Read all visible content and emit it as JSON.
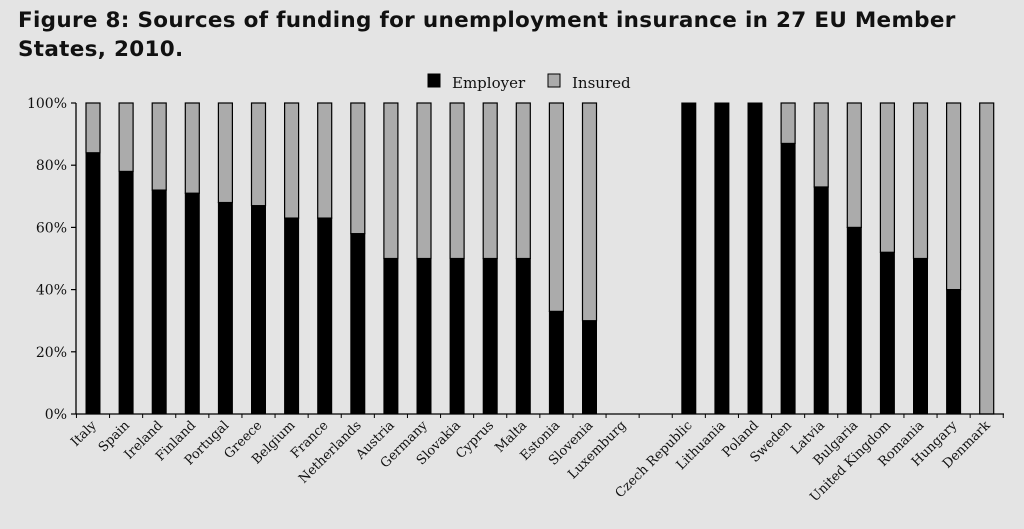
{
  "figure": {
    "title": "Figure 8: Sources of funding for unemployment insurance in 27 EU Member States, 2010."
  },
  "colors": {
    "background": "#e4e4e4",
    "employer": "#000000",
    "insured": "#ababab",
    "axis": "#000000"
  },
  "chart_data": {
    "type": "bar",
    "stacked": true,
    "percent": true,
    "title": "Figure 8: Sources of funding for unemployment insurance in 27 EU Member States, 2010.",
    "xlabel": "",
    "ylabel": "",
    "ylim": [
      0,
      100
    ],
    "yticks": [
      "0%",
      "20%",
      "40%",
      "60%",
      "80%",
      "100%"
    ],
    "grid": false,
    "legend_position": "top-center",
    "categories": [
      "Italy",
      "Spain",
      "Ireland",
      "Finland",
      "Portugal",
      "Greece",
      "Belgium",
      "France",
      "Netherlands",
      "Austria",
      "Germany",
      "Slovakia",
      "Cyprus",
      "Malta",
      "Estonia",
      "Slovenia",
      "Luxemburg",
      "",
      "Czech Republic",
      "Lithuania",
      "Poland",
      "Sweden",
      "Latvia",
      "Bulgaria",
      "United Kingdom",
      "Romania",
      "Hungary",
      "Denmark"
    ],
    "series": [
      {
        "name": "Employer",
        "values": [
          84,
          78,
          72,
          71,
          68,
          67,
          63,
          63,
          58,
          50,
          50,
          50,
          50,
          50,
          33,
          30,
          null,
          null,
          100,
          100,
          100,
          87,
          73,
          60,
          52,
          50,
          40,
          0
        ]
      },
      {
        "name": "Insured",
        "values": [
          16,
          22,
          28,
          29,
          32,
          33,
          37,
          37,
          42,
          50,
          50,
          50,
          50,
          50,
          67,
          70,
          null,
          null,
          0,
          0,
          0,
          13,
          27,
          40,
          48,
          50,
          60,
          100
        ]
      }
    ]
  }
}
